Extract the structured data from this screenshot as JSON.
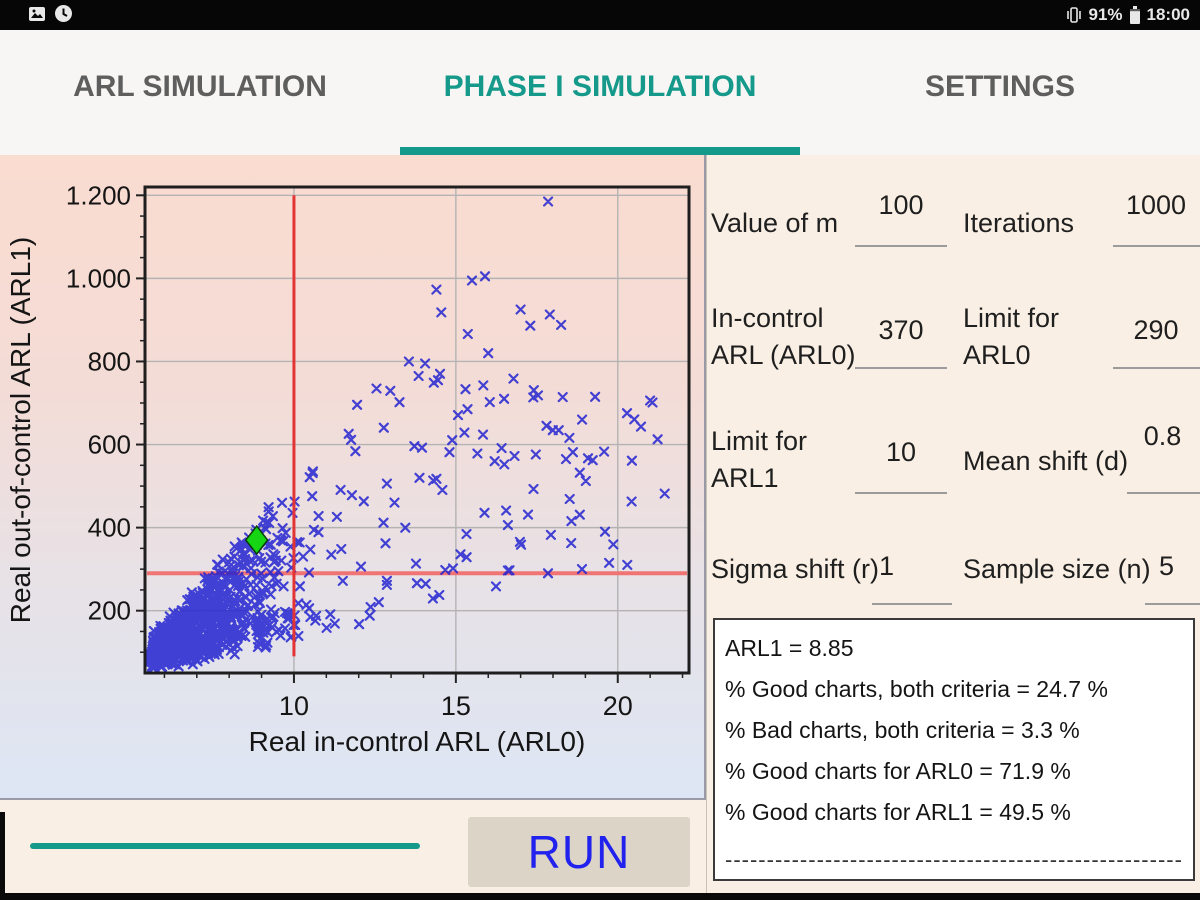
{
  "status_bar": {
    "time": "18:00",
    "battery_percent": "91%",
    "left_icons": [
      "image-icon",
      "clock-icon"
    ],
    "right_icons": [
      "vibrate-icon",
      "battery-icon"
    ]
  },
  "tabs": {
    "items": [
      {
        "label": "ARL SIMULATION",
        "active": false
      },
      {
        "label": "PHASE I SIMULATION",
        "active": true
      },
      {
        "label": "SETTINGS",
        "active": false
      }
    ]
  },
  "form": {
    "fields": [
      {
        "id": "value_of_m",
        "label": "Value of m",
        "value": "100"
      },
      {
        "id": "iterations",
        "label": "Iterations",
        "value": "1000"
      },
      {
        "id": "in_control_arl",
        "label": "In-control ARL (ARL0)",
        "value": "370"
      },
      {
        "id": "limit_arl0",
        "label": "Limit for ARL0",
        "value": "290"
      },
      {
        "id": "limit_arl1",
        "label": "Limit for ARL1",
        "value": "10"
      },
      {
        "id": "mean_shift",
        "label": "Mean shift (d)",
        "value": "0.8"
      },
      {
        "id": "sigma_shift",
        "label": "Sigma shift (r)",
        "value": "1"
      },
      {
        "id": "sample_size",
        "label": "Sample size (n)",
        "value": "5"
      }
    ]
  },
  "results": {
    "lines": [
      "ARL1 = 8.85",
      "% Good charts, both criteria = 24.7 %",
      "% Bad charts, both criteria = 3.3 %",
      "% Good charts for ARL0 = 71.9 %",
      "% Good charts for ARL1 = 49.5 %"
    ],
    "separator": "-------------------------------------------------------"
  },
  "run_button": {
    "label": "RUN"
  },
  "colors": {
    "teal": "#14998a",
    "scatter_blue": "#2323d0",
    "ref_line_red": "#e23434",
    "ref_line_salmon": "#f07474",
    "marker_green": "#16d513",
    "run_text_blue": "#2222ee",
    "grid_gray": "#b3b3b3",
    "frame_dark": "#1e1e1e"
  },
  "chart_data": {
    "type": "scatter",
    "xlabel": "Real in-control ARL (ARL0)",
    "ylabel": "Real out-of-control ARL (ARL1)",
    "xlim": [
      5.4,
      22.2
    ],
    "ylim": [
      50,
      1220
    ],
    "x_major_ticks": [
      10,
      15,
      20
    ],
    "x_tick_labels": [
      "10",
      "15",
      "20"
    ],
    "x_minor_step": 1,
    "y_major_ticks": [
      200,
      400,
      600,
      800,
      1000,
      1200
    ],
    "y_tick_labels": [
      "200",
      "400",
      "600",
      "800",
      "1.000",
      "1.200"
    ],
    "y_minor_step": 50,
    "grid": true,
    "reference_lines": {
      "vertical_x": 10,
      "vertical_y_span": [
        90,
        1200
      ],
      "horizontal_y": 290
    },
    "marker_diamond": {
      "x": 8.85,
      "y": 370
    },
    "scatter_model": {
      "seed": 20,
      "count": 1000,
      "x_base": 5.55,
      "halfnormal_scale": 2.0,
      "uniform_mix": 0.13,
      "uniform_min": 7.5,
      "uniform_max": 21.3,
      "y_slope_min": 16,
      "y_slope_spread": 72,
      "w_power": 1.35,
      "y_offset": 40,
      "y_jitter": 55,
      "y_cap": 780,
      "y_cap_base": 300,
      "y_min": 60,
      "x_max": 21.45
    },
    "outlier_points": [
      [
        17.85,
        1185
      ],
      [
        15.5,
        995
      ],
      [
        15.9,
        1005
      ],
      [
        14.4,
        973
      ],
      [
        14.55,
        918
      ],
      [
        17.0,
        925
      ],
      [
        17.9,
        913
      ],
      [
        17.3,
        886
      ],
      [
        18.25,
        888
      ],
      [
        15.37,
        866
      ],
      [
        16.0,
        820
      ],
      [
        13.55,
        800
      ],
      [
        14.05,
        795
      ],
      [
        13.85,
        765
      ],
      [
        12.55,
        735
      ],
      [
        14.45,
        755
      ],
      [
        21.0,
        706
      ],
      [
        18.9,
        660
      ],
      [
        19.3,
        715
      ],
      [
        21.45,
        482
      ],
      [
        17.8,
        645
      ],
      [
        16.2,
        560
      ],
      [
        18.4,
        565
      ]
    ]
  }
}
